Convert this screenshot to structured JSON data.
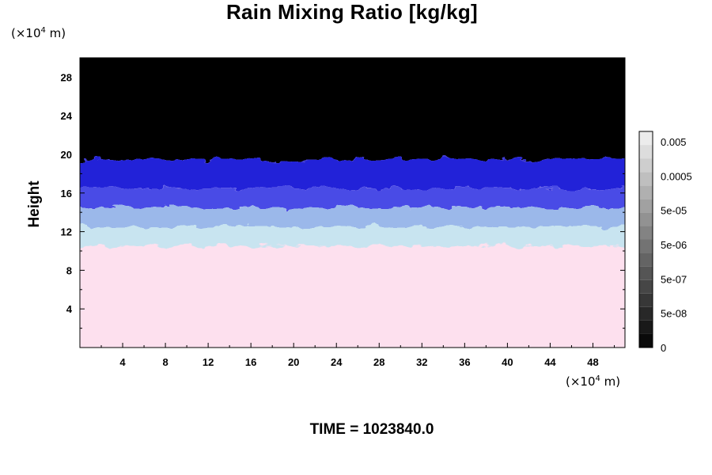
{
  "chart_data": {
    "type": "heatmap",
    "title": "Rain Mixing Ratio [kg/kg]",
    "ylabel": "Height",
    "y_unit": "(×10",
    "y_unit_exp": "4",
    "y_unit_tail": " m)",
    "x_unit": "(×10",
    "x_unit_exp": "4",
    "x_unit_tail": " m)",
    "xlim": [
      0,
      51
    ],
    "ylim": [
      0,
      30
    ],
    "x_ticks": [
      4,
      8,
      12,
      16,
      20,
      24,
      28,
      32,
      36,
      40,
      44,
      48
    ],
    "y_ticks": [
      4,
      8,
      12,
      16,
      20,
      24,
      28
    ],
    "grid": false,
    "colorbar": {
      "labels": [
        "0.005",
        "0.0005",
        "5e-05",
        "5e-06",
        "5e-07",
        "5e-08",
        "0"
      ],
      "levels": 16
    },
    "bands": [
      {
        "from": 0,
        "to": 10.5,
        "color": "#fde0ee"
      },
      {
        "from": 10.5,
        "to": 12.5,
        "color": "#c8e4f0"
      },
      {
        "from": 12.5,
        "to": 14.5,
        "color": "#9bb8ea"
      },
      {
        "from": 14.5,
        "to": 16.5,
        "color": "#4a4ce6"
      },
      {
        "from": 16.5,
        "to": 19.5,
        "color": "#2121d8"
      },
      {
        "from": 19.5,
        "to": 30,
        "color": "#000000"
      }
    ],
    "time_label": "TIME = 1023840.0"
  }
}
